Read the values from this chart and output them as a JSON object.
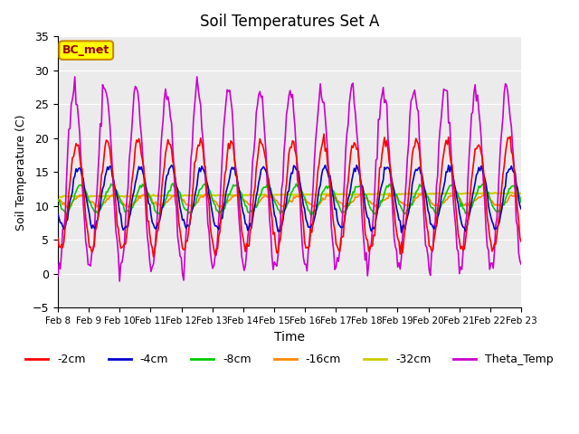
{
  "title": "Soil Temperatures Set A",
  "xlabel": "Time",
  "ylabel": "Soil Temperature (C)",
  "ylim": [
    -5,
    35
  ],
  "yticks": [
    -5,
    0,
    5,
    10,
    15,
    20,
    25,
    30,
    35
  ],
  "xtick_labels": [
    "Feb 8",
    "Feb 9",
    "Feb 10",
    "Feb 11",
    "Feb 12",
    "Feb 13",
    "Feb 14",
    "Feb 15",
    "Feb 16",
    "Feb 17",
    "Feb 18",
    "Feb 19",
    "Feb 20",
    "Feb 21",
    "Feb 22",
    "Feb 23"
  ],
  "legend_labels": [
    "-2cm",
    "-4cm",
    "-8cm",
    "-16cm",
    "-32cm",
    "Theta_Temp"
  ],
  "colors": {
    "-2cm": "#ff0000",
    "-4cm": "#0000cc",
    "-8cm": "#00cc00",
    "-16cm": "#ff8800",
    "-32cm": "#cccc00",
    "Theta_Temp": "#cc00cc"
  },
  "annotation_text": "BC_met",
  "annotation_facecolor": "#ffff00",
  "annotation_edgecolor": "#cc8800",
  "annotation_textcolor": "#990000",
  "plot_bg_color": "#ebebeb",
  "n_points": 384,
  "days": 15,
  "start_day": 8
}
